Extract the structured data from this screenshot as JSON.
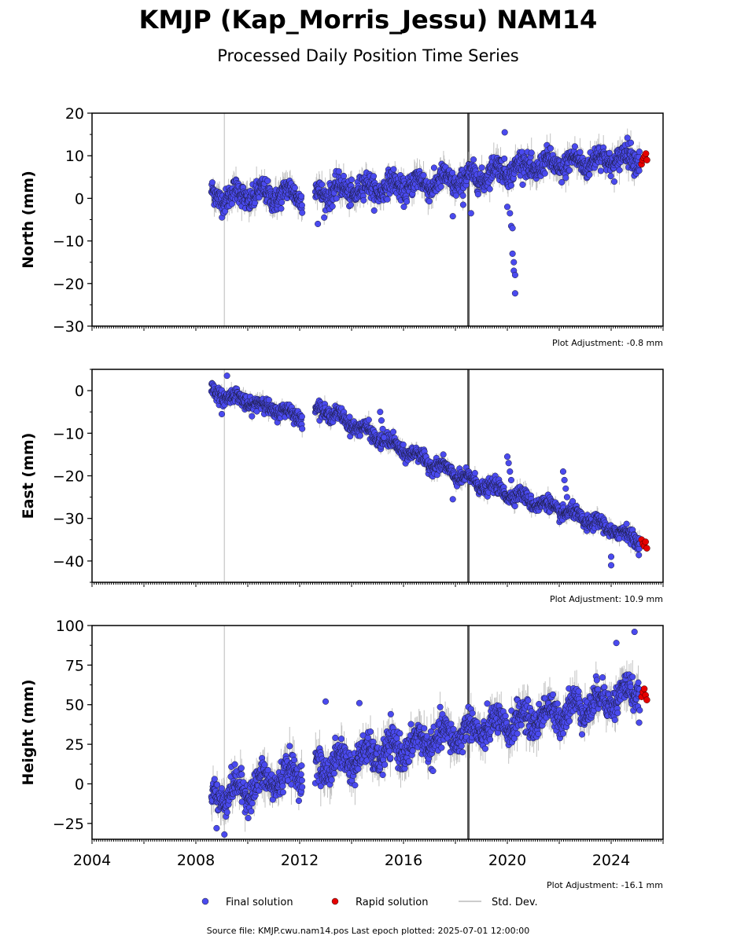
{
  "title": "KMJP (Kap_Morris_Jessu) NAM14",
  "subtitle": "Processed Daily Position Time Series",
  "footer": "Source file: KMJP.cwu.nam14.pos  Last epoch plotted: 2025-07-01 12:00:00",
  "colors": {
    "final": "#4a4aef",
    "rapid": "#e60000",
    "stddev": "#b4b4b4",
    "event_line": "#555555"
  },
  "legend": {
    "final": "Final solution",
    "rapid": "Rapid solution",
    "stddev": "Std. Dev."
  },
  "chart_data": [
    {
      "type": "scatter",
      "ylabel": "North (mm)",
      "ylim": [
        -30,
        20
      ],
      "yticks": [
        -30,
        -20,
        -10,
        0,
        10,
        20
      ],
      "ytick_labels": [
        "−30",
        "−20",
        "−10",
        "0",
        "10",
        "20"
      ],
      "xlim": [
        2004,
        2026
      ],
      "adjustment": "Plot Adjustment: -0.8 mm",
      "trend": [
        [
          2008.5,
          0.5
        ],
        [
          2012,
          1
        ],
        [
          2016,
          3
        ],
        [
          2018.5,
          4.5
        ],
        [
          2020,
          7
        ],
        [
          2022,
          8
        ],
        [
          2025.3,
          10
        ]
      ],
      "series": [
        {
          "name": "Final solution",
          "x_range": [
            2008.6,
            2025.1
          ],
          "scatter": 2.5,
          "values_note": ""
        },
        {
          "name": "Rapid solution",
          "x_range": [
            2025.15,
            2025.4
          ],
          "y": [
            8,
            9,
            9.5,
            10,
            10.5,
            9
          ]
        }
      ],
      "highlights": [
        {
          "x": [
            2020.0,
            2020.1,
            2020.15,
            2020.2,
            2020.2,
            2020.25,
            2020.25,
            2020.3,
            2020.3
          ],
          "y": [
            -2,
            -3.5,
            -6.5,
            -7,
            -13,
            -15,
            -17,
            -18,
            -22.3
          ]
        },
        {
          "x": [
            2019.9
          ],
          "y": [
            15.5
          ]
        },
        {
          "x": [
            2017.9,
            2018.3,
            2018.6
          ],
          "y": [
            -4.2,
            -1.5,
            -3.5
          ]
        },
        {
          "x": [
            2012.7
          ],
          "y": [
            -6
          ]
        }
      ]
    },
    {
      "type": "scatter",
      "ylabel": "East (mm)",
      "ylim": [
        -45,
        5
      ],
      "yticks": [
        -40,
        -30,
        -20,
        -10,
        0
      ],
      "ytick_labels": [
        "−40",
        "−30",
        "−20",
        "−10",
        "0"
      ],
      "xlim": [
        2004,
        2026
      ],
      "adjustment": "Plot Adjustment: 10.9 mm",
      "trend": [
        [
          2008.5,
          0
        ],
        [
          2012,
          -6
        ],
        [
          2012.8,
          -4
        ],
        [
          2016,
          -14
        ],
        [
          2018.5,
          -21
        ],
        [
          2020,
          -24
        ],
        [
          2022,
          -28
        ],
        [
          2025.3,
          -35.5
        ]
      ],
      "series": [
        {
          "name": "Final solution",
          "x_range": [
            2008.6,
            2025.1
          ],
          "scatter": 1.5
        },
        {
          "name": "Rapid solution",
          "x_range": [
            2025.15,
            2025.4
          ],
          "y": [
            -35,
            -36,
            -36.5,
            -35.5,
            -37
          ]
        }
      ],
      "highlights": [
        {
          "x": [
            2015.1,
            2015.15,
            2015.2,
            2015.25
          ],
          "y": [
            -5,
            -7,
            -9,
            -11
          ]
        },
        {
          "x": [
            2020.0,
            2020.05,
            2020.1,
            2020.15
          ],
          "y": [
            -15.5,
            -17,
            -19,
            -21
          ]
        },
        {
          "x": [
            2022.15,
            2022.2,
            2022.25,
            2022.3
          ],
          "y": [
            -19,
            -21,
            -23,
            -25
          ]
        },
        {
          "x": [
            2024.0,
            2024.0
          ],
          "y": [
            -41,
            -39
          ]
        },
        {
          "x": [
            2017.9,
            2009.0,
            2009.2
          ],
          "y": [
            -25.5,
            -5.5,
            3.5
          ]
        }
      ]
    },
    {
      "type": "scatter",
      "ylabel": "Height (mm)",
      "ylim": [
        -35,
        100
      ],
      "yticks": [
        -25,
        0,
        25,
        50,
        75,
        100
      ],
      "ytick_labels": [
        "−25",
        "0",
        "25",
        "50",
        "75",
        "100"
      ],
      "xlim": [
        2004,
        2026
      ],
      "xticks": [
        2004,
        2008,
        2012,
        2016,
        2020,
        2024
      ],
      "xtick_labels": [
        "2004",
        "2008",
        "2012",
        "2016",
        "2020",
        "2024"
      ],
      "adjustment": "Plot Adjustment: -16.1 mm",
      "trend": [
        [
          2008.5,
          -8
        ],
        [
          2010,
          -3
        ],
        [
          2012,
          8
        ],
        [
          2016,
          23
        ],
        [
          2018.5,
          33
        ],
        [
          2020,
          38
        ],
        [
          2022,
          45
        ],
        [
          2025.3,
          60
        ]
      ],
      "series": [
        {
          "name": "Final solution",
          "x_range": [
            2008.6,
            2025.1
          ],
          "scatter": 9
        },
        {
          "name": "Rapid solution",
          "x_range": [
            2025.15,
            2025.4
          ],
          "y": [
            55,
            58,
            60,
            56,
            53
          ]
        }
      ],
      "highlights": [
        {
          "x": [
            2013.0,
            2014.3,
            2024.9,
            2024.2
          ],
          "y": [
            52,
            51,
            96,
            89
          ]
        },
        {
          "x": [
            2009.1,
            2008.8
          ],
          "y": [
            -32,
            -28
          ]
        }
      ]
    }
  ]
}
